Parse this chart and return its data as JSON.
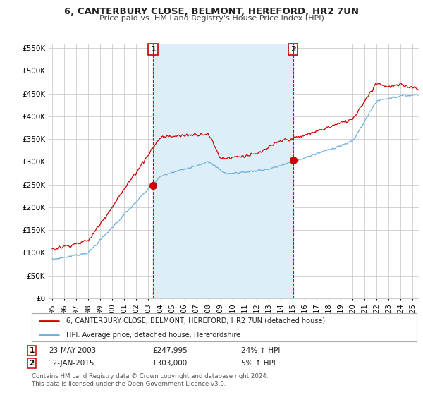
{
  "title": "6, CANTERBURY CLOSE, BELMONT, HEREFORD, HR2 7UN",
  "subtitle": "Price paid vs. HM Land Registry's House Price Index (HPI)",
  "legend_line1": "6, CANTERBURY CLOSE, BELMONT, HEREFORD, HR2 7UN (detached house)",
  "legend_line2": "HPI: Average price, detached house, Herefordshire",
  "annotation1_date": "23-MAY-2003",
  "annotation1_price": "£247,995",
  "annotation1_hpi": "24% ↑ HPI",
  "annotation2_date": "12-JAN-2015",
  "annotation2_price": "£303,000",
  "annotation2_hpi": "5% ↑ HPI",
  "footer": "Contains HM Land Registry data © Crown copyright and database right 2024.\nThis data is licensed under the Open Government Licence v3.0.",
  "sale1_x": 2003.39,
  "sale1_y": 247995,
  "sale2_x": 2015.04,
  "sale2_y": 303000,
  "hpi_color": "#6ab0de",
  "price_color": "#cc0000",
  "sale_dot_color": "#cc0000",
  "shade_color": "#ddeef8",
  "background_color": "#ffffff",
  "grid_color": "#cccccc",
  "ylim": [
    0,
    560000
  ],
  "xlim_start": 1994.7,
  "xlim_end": 2025.5,
  "yticks": [
    0,
    50000,
    100000,
    150000,
    200000,
    250000,
    300000,
    350000,
    400000,
    450000,
    500000,
    550000
  ],
  "xticks": [
    1995,
    1996,
    1997,
    1998,
    1999,
    2000,
    2001,
    2002,
    2003,
    2004,
    2005,
    2006,
    2007,
    2008,
    2009,
    2010,
    2011,
    2012,
    2013,
    2014,
    2015,
    2016,
    2017,
    2018,
    2019,
    2020,
    2021,
    2022,
    2023,
    2024,
    2025
  ]
}
